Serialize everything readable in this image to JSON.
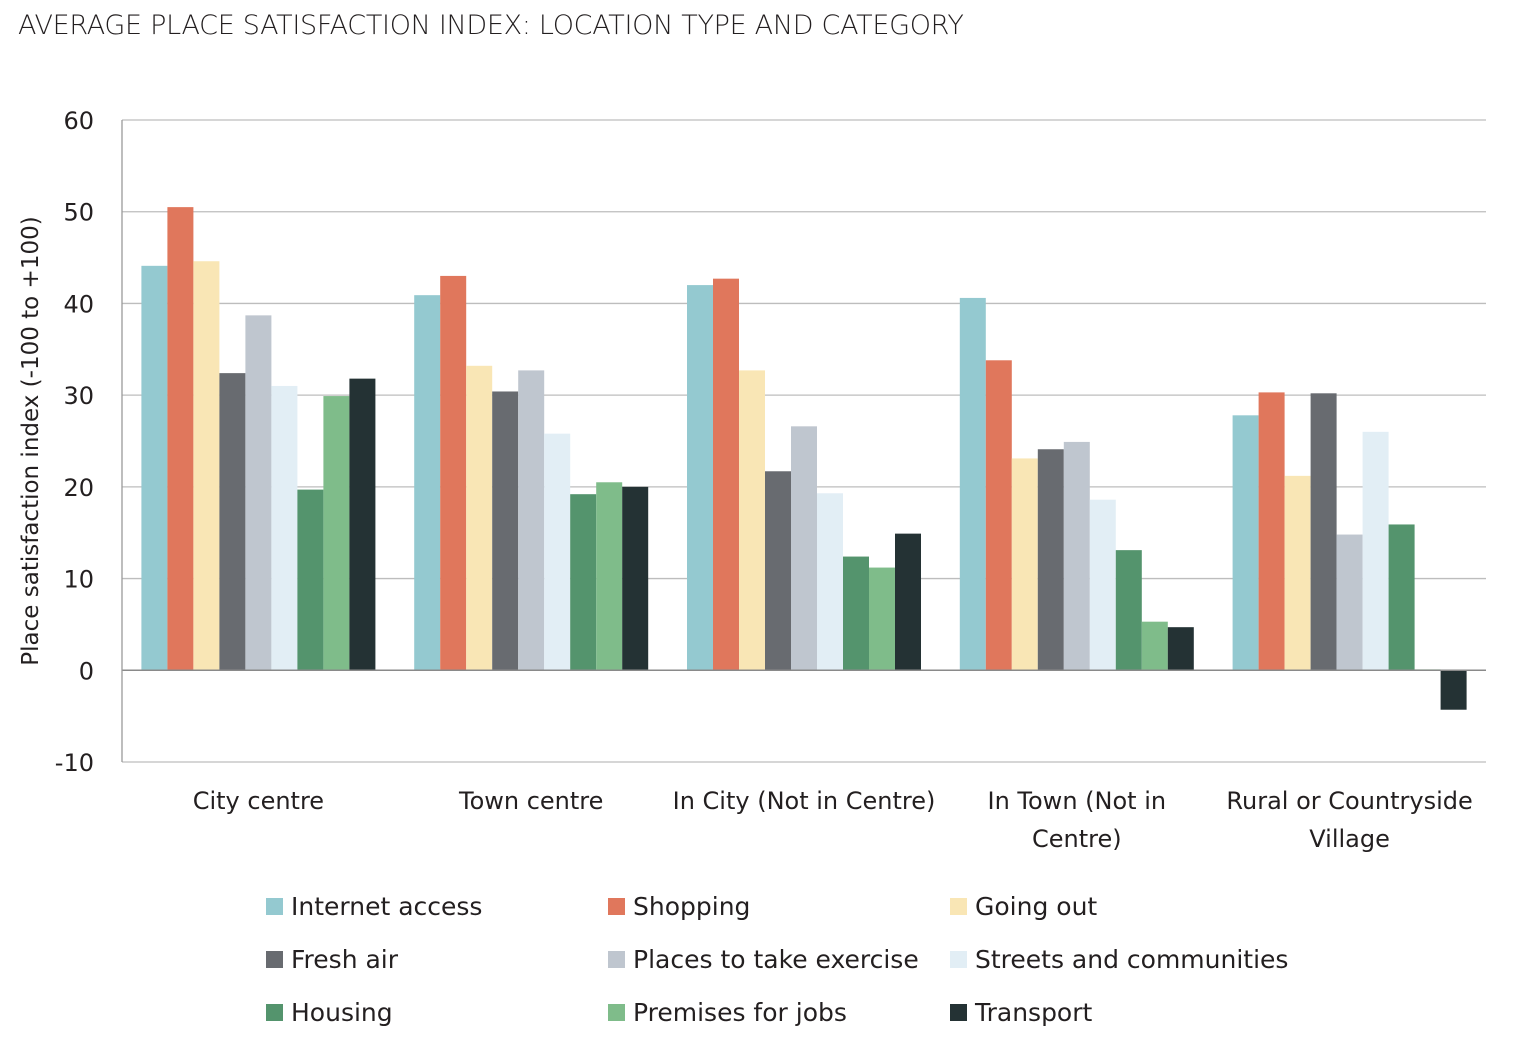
{
  "chart_data": {
    "type": "bar",
    "title": "AVERAGE PLACE SATISFACTION INDEX: LOCATION TYPE AND CATEGORY",
    "xlabel": "",
    "ylabel": "Place satisfaction index (-100 to +100)",
    "ylim": [
      -10,
      60
    ],
    "yticks": [
      60,
      50,
      40,
      30,
      20,
      10,
      0,
      -10
    ],
    "grid": true,
    "legend_position": "bottom",
    "categories": [
      [
        "City centre"
      ],
      [
        "Town centre"
      ],
      [
        "In City (Not in Centre)"
      ],
      [
        "In Town (Not in",
        "Centre)"
      ],
      [
        "Rural or Countryside",
        "Village"
      ]
    ],
    "series": [
      {
        "name": "Internet access",
        "color": "#94c9d0",
        "values": [
          44.1,
          40.9,
          42.0,
          40.6,
          27.8
        ]
      },
      {
        "name": "Shopping",
        "color": "#e0775c",
        "values": [
          50.5,
          43.0,
          42.7,
          33.8,
          30.3
        ]
      },
      {
        "name": "Going out",
        "color": "#f9e6b5",
        "values": [
          44.6,
          33.2,
          32.7,
          23.1,
          21.2
        ]
      },
      {
        "name": "Fresh air",
        "color": "#686b70",
        "values": [
          32.4,
          30.4,
          21.7,
          24.1,
          30.2
        ]
      },
      {
        "name": "Places to take exercise",
        "color": "#bfc6cf",
        "values": [
          38.7,
          32.7,
          26.6,
          24.9,
          14.8
        ]
      },
      {
        "name": "Streets and communities",
        "color": "#e2eef5",
        "values": [
          31.0,
          25.8,
          19.3,
          18.6,
          26.0
        ]
      },
      {
        "name": "Housing",
        "color": "#54946d",
        "values": [
          19.7,
          19.2,
          12.4,
          13.1,
          15.9
        ]
      },
      {
        "name": "Premises for jobs",
        "color": "#7fbc8a",
        "values": [
          29.9,
          20.5,
          11.2,
          5.3,
          0.1
        ]
      },
      {
        "name": "Transport",
        "color": "#243234",
        "values": [
          31.8,
          20.0,
          14.9,
          4.7,
          -4.3
        ]
      }
    ]
  }
}
